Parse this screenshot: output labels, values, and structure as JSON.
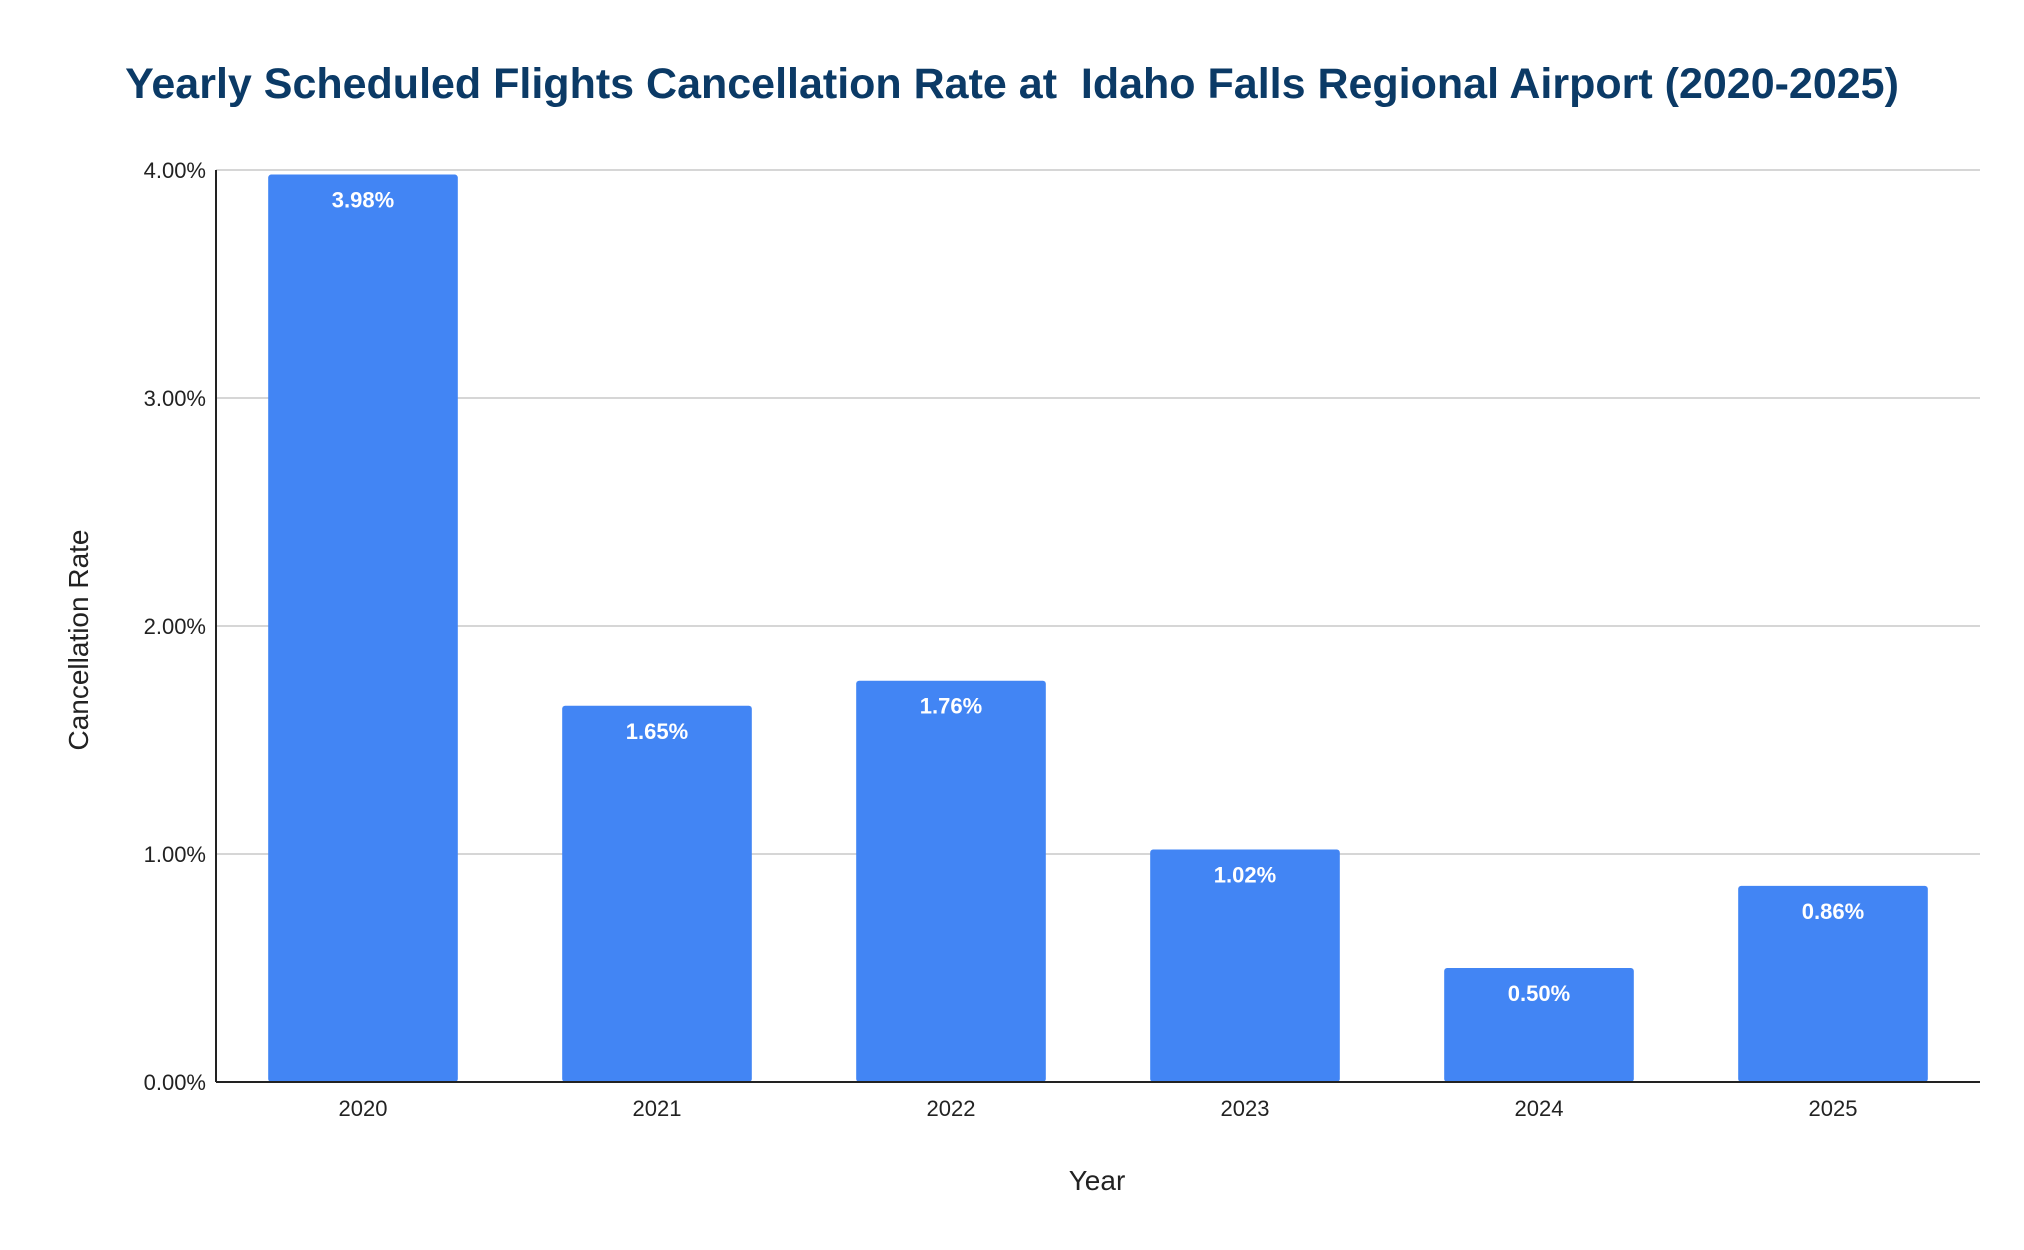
{
  "chart_data": {
    "type": "bar",
    "title": "Yearly Scheduled Flights Cancellation Rate at  Idaho Falls Regional Airport (2020-2025)",
    "xlabel": "Year",
    "ylabel": "Cancellation Rate",
    "categories": [
      "2020",
      "2021",
      "2022",
      "2023",
      "2024",
      "2025"
    ],
    "values": [
      3.98,
      1.65,
      1.76,
      1.02,
      0.5,
      0.86
    ],
    "data_labels": [
      "3.98%",
      "1.65%",
      "1.76%",
      "1.02%",
      "0.50%",
      "0.86%"
    ],
    "ylim": [
      0,
      4
    ],
    "yticks": [
      0,
      1,
      2,
      3,
      4
    ],
    "ytick_labels": [
      "0.00%",
      "1.00%",
      "2.00%",
      "3.00%",
      "4.00%"
    ],
    "grid": true,
    "legend": "none",
    "bar_color": "#4285f4",
    "title_color": "#0b3a66"
  }
}
